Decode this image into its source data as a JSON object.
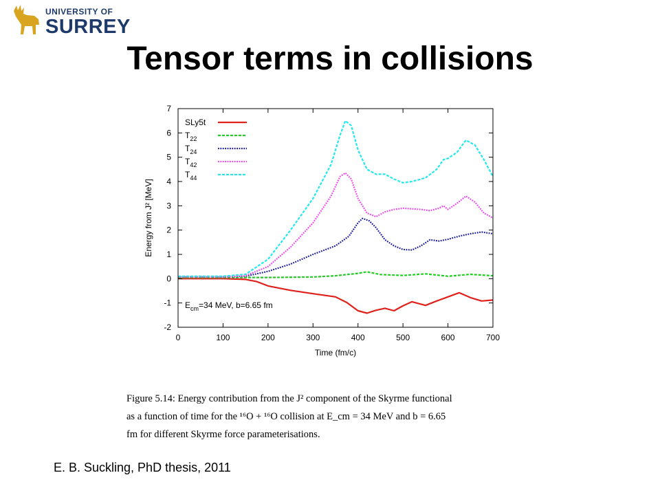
{
  "logo": {
    "line1": "UNIVERSITY OF",
    "line2": "SURREY"
  },
  "slide_title": "Tensor terms in collisions",
  "chart_data": {
    "type": "line",
    "xlabel": "Time (fm/c)",
    "ylabel": "Energy from J² [MeV]",
    "xlim": [
      0,
      700
    ],
    "ylim": [
      -2,
      7
    ],
    "xticks": [
      0,
      100,
      200,
      300,
      400,
      500,
      600,
      700
    ],
    "yticks": [
      -2,
      -1,
      0,
      1,
      2,
      3,
      4,
      5,
      6,
      7
    ],
    "grid": false,
    "legend_position": "top-left",
    "annotation": "E_cm=34 MeV, b=6.65 fm",
    "series": [
      {
        "name": "SLy5t",
        "color": "#e0201b",
        "dash": "solid",
        "x": [
          0,
          100,
          150,
          175,
          200,
          250,
          300,
          350,
          375,
          400,
          420,
          440,
          460,
          480,
          500,
          520,
          550,
          575,
          600,
          625,
          650,
          675,
          700
        ],
        "y": [
          0,
          0,
          -0.03,
          -0.12,
          -0.3,
          -0.48,
          -0.62,
          -0.75,
          -0.98,
          -1.32,
          -1.42,
          -1.3,
          -1.22,
          -1.32,
          -1.12,
          -0.95,
          -1.1,
          -0.92,
          -0.75,
          -0.58,
          -0.78,
          -0.92,
          -0.88
        ]
      },
      {
        "name": "T22",
        "color": "#22cc22",
        "dash": "dash",
        "x": [
          0,
          150,
          200,
          300,
          350,
          400,
          420,
          450,
          500,
          550,
          600,
          650,
          700
        ],
        "y": [
          0.05,
          0.05,
          0.05,
          0.07,
          0.12,
          0.22,
          0.28,
          0.17,
          0.13,
          0.2,
          0.1,
          0.18,
          0.12
        ]
      },
      {
        "name": "T24",
        "color": "#1a1aa0",
        "dash": "dot",
        "x": [
          0,
          100,
          150,
          200,
          250,
          300,
          350,
          380,
          400,
          410,
          425,
          440,
          460,
          480,
          500,
          520,
          540,
          560,
          580,
          600,
          625,
          650,
          675,
          700
        ],
        "y": [
          0.07,
          0.07,
          0.1,
          0.3,
          0.6,
          1.0,
          1.35,
          1.75,
          2.3,
          2.48,
          2.38,
          2.1,
          1.6,
          1.35,
          1.2,
          1.18,
          1.35,
          1.6,
          1.55,
          1.62,
          1.75,
          1.85,
          1.92,
          1.85
        ]
      },
      {
        "name": "T42",
        "color": "#ee44ee",
        "dash": "dot",
        "x": [
          0,
          100,
          150,
          200,
          250,
          300,
          340,
          360,
          372,
          385,
          400,
          420,
          440,
          460,
          480,
          500,
          540,
          560,
          580,
          590,
          600,
          620,
          640,
          660,
          680,
          700
        ],
        "y": [
          0.07,
          0.07,
          0.12,
          0.5,
          1.3,
          2.3,
          3.4,
          4.2,
          4.35,
          4.1,
          3.3,
          2.7,
          2.55,
          2.75,
          2.85,
          2.9,
          2.85,
          2.8,
          2.9,
          3.0,
          2.85,
          3.1,
          3.4,
          3.15,
          2.7,
          2.5
        ]
      },
      {
        "name": "T44",
        "color": "#22e8ee",
        "dash": "dash",
        "x": [
          0,
          100,
          150,
          200,
          250,
          300,
          340,
          360,
          372,
          385,
          400,
          420,
          440,
          460,
          480,
          500,
          520,
          550,
          575,
          590,
          600,
          620,
          640,
          660,
          680,
          700
        ],
        "y": [
          0.1,
          0.1,
          0.18,
          0.8,
          2.0,
          3.3,
          4.7,
          5.9,
          6.5,
          6.3,
          5.3,
          4.5,
          4.3,
          4.3,
          4.1,
          3.95,
          4.0,
          4.15,
          4.5,
          4.9,
          4.95,
          5.2,
          5.7,
          5.5,
          4.9,
          4.2
        ]
      }
    ]
  },
  "caption": {
    "line1": "Figure 5.14: Energy contribution from the J² component of the Skyrme functional",
    "line2": "as a function of time for the ¹⁶O + ¹⁶O collision at E_cm = 34 MeV and b = 6.65",
    "line3": "fm for different Skyrme force parameterisations."
  },
  "citation": "E. B. Suckling, PhD thesis, 2011"
}
